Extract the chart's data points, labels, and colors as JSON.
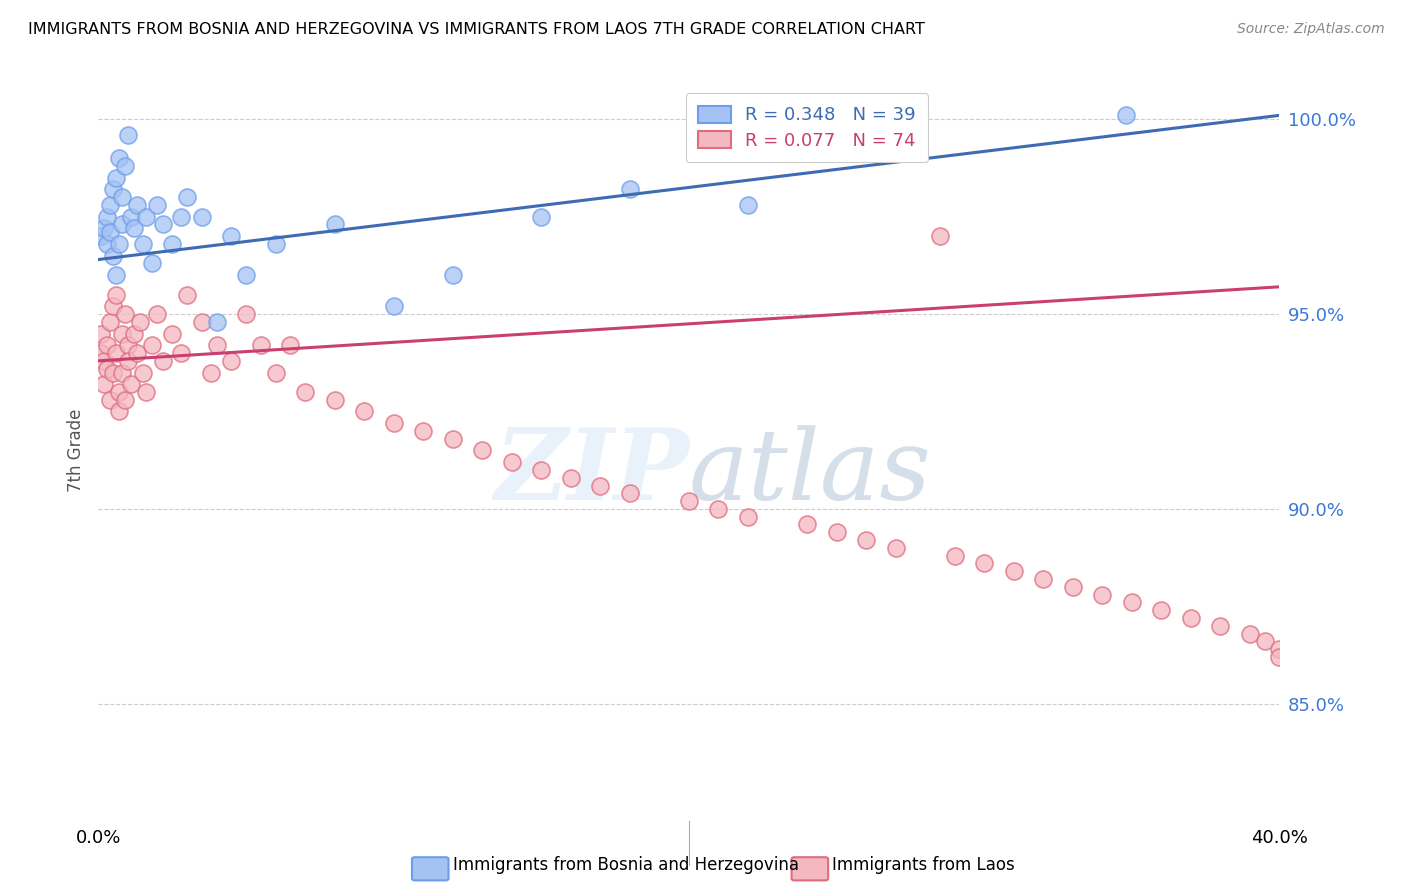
{
  "title": "IMMIGRANTS FROM BOSNIA AND HERZEGOVINA VS IMMIGRANTS FROM LAOS 7TH GRADE CORRELATION CHART",
  "source": "Source: ZipAtlas.com",
  "ylabel": "7th Grade",
  "xmin": 0.0,
  "xmax": 0.4,
  "ymin": 0.82,
  "ymax": 1.01,
  "yticks": [
    0.85,
    0.9,
    0.95,
    1.0
  ],
  "ytick_labels": [
    "85.0%",
    "90.0%",
    "95.0%",
    "100.0%"
  ],
  "bosnia_color": "#a4c2f4",
  "laos_color": "#f4b8c1",
  "bosnia_edge_color": "#6d9eeb",
  "laos_edge_color": "#e06c7e",
  "bosnia_line_color": "#3d6cb5",
  "laos_line_color": "#c94070",
  "bosnia_R": 0.348,
  "bosnia_N": 39,
  "laos_R": 0.077,
  "laos_N": 74,
  "legend_label_1": "Immigrants from Bosnia and Herzegovina",
  "legend_label_2": "Immigrants from Laos",
  "bosnia_trend_x0": 0.0,
  "bosnia_trend_y0": 0.964,
  "bosnia_trend_x1": 0.4,
  "bosnia_trend_y1": 1.001,
  "laos_trend_x0": 0.0,
  "laos_trend_y0": 0.938,
  "laos_trend_x1": 0.4,
  "laos_trend_y1": 0.957,
  "bosnia_pts_x": [
    0.001,
    0.002,
    0.003,
    0.003,
    0.004,
    0.004,
    0.005,
    0.005,
    0.006,
    0.006,
    0.007,
    0.007,
    0.008,
    0.008,
    0.009,
    0.01,
    0.011,
    0.012,
    0.013,
    0.015,
    0.016,
    0.018,
    0.02,
    0.022,
    0.025,
    0.028,
    0.03,
    0.035,
    0.04,
    0.045,
    0.05,
    0.06,
    0.08,
    0.1,
    0.12,
    0.15,
    0.18,
    0.22,
    0.348
  ],
  "bosnia_pts_y": [
    0.97,
    0.972,
    0.968,
    0.975,
    0.971,
    0.978,
    0.965,
    0.982,
    0.96,
    0.985,
    0.968,
    0.99,
    0.973,
    0.98,
    0.988,
    0.996,
    0.975,
    0.972,
    0.978,
    0.968,
    0.975,
    0.963,
    0.978,
    0.973,
    0.968,
    0.975,
    0.98,
    0.975,
    0.948,
    0.97,
    0.96,
    0.968,
    0.973,
    0.952,
    0.96,
    0.975,
    0.982,
    0.978,
    1.001
  ],
  "laos_pts_x": [
    0.001,
    0.001,
    0.002,
    0.002,
    0.003,
    0.003,
    0.004,
    0.004,
    0.005,
    0.005,
    0.006,
    0.006,
    0.007,
    0.007,
    0.008,
    0.008,
    0.009,
    0.009,
    0.01,
    0.01,
    0.011,
    0.012,
    0.013,
    0.014,
    0.015,
    0.016,
    0.018,
    0.02,
    0.022,
    0.025,
    0.028,
    0.03,
    0.035,
    0.038,
    0.04,
    0.045,
    0.05,
    0.055,
    0.06,
    0.065,
    0.07,
    0.08,
    0.09,
    0.1,
    0.11,
    0.12,
    0.13,
    0.14,
    0.15,
    0.16,
    0.17,
    0.18,
    0.2,
    0.21,
    0.22,
    0.24,
    0.25,
    0.26,
    0.27,
    0.285,
    0.29,
    0.3,
    0.31,
    0.32,
    0.33,
    0.34,
    0.35,
    0.36,
    0.37,
    0.38,
    0.39,
    0.395,
    0.4,
    0.4
  ],
  "laos_pts_y": [
    0.94,
    0.945,
    0.938,
    0.932,
    0.942,
    0.936,
    0.928,
    0.948,
    0.935,
    0.952,
    0.94,
    0.955,
    0.93,
    0.925,
    0.935,
    0.945,
    0.928,
    0.95,
    0.942,
    0.938,
    0.932,
    0.945,
    0.94,
    0.948,
    0.935,
    0.93,
    0.942,
    0.95,
    0.938,
    0.945,
    0.94,
    0.955,
    0.948,
    0.935,
    0.942,
    0.938,
    0.95,
    0.942,
    0.935,
    0.942,
    0.93,
    0.928,
    0.925,
    0.922,
    0.92,
    0.918,
    0.915,
    0.912,
    0.91,
    0.908,
    0.906,
    0.904,
    0.902,
    0.9,
    0.898,
    0.896,
    0.894,
    0.892,
    0.89,
    0.97,
    0.888,
    0.886,
    0.884,
    0.882,
    0.88,
    0.878,
    0.876,
    0.874,
    0.872,
    0.87,
    0.868,
    0.866,
    0.864,
    0.862
  ]
}
